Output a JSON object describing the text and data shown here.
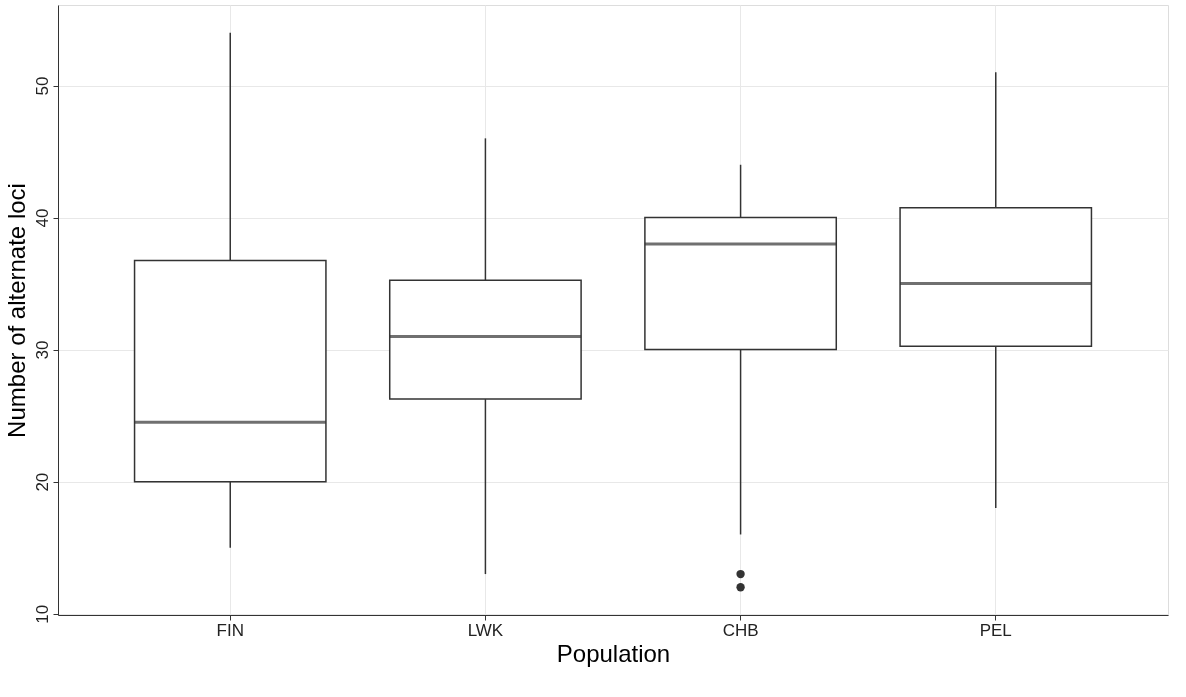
{
  "chart_data": {
    "type": "box",
    "xlabel": "Population",
    "ylabel": "Number of alternate loci",
    "categories": [
      "FIN",
      "LWK",
      "CHB",
      "PEL"
    ],
    "boxes": [
      {
        "low": 15,
        "q1": 20,
        "median": 24.5,
        "q3": 36.75,
        "high": 54
      },
      {
        "low": 13,
        "q1": 26.25,
        "median": 31,
        "q3": 35.25,
        "high": 46
      },
      {
        "low": 16,
        "q1": 30,
        "median": 38,
        "q3": 40,
        "high": 44,
        "outliers": [
          12,
          13
        ]
      },
      {
        "low": 18,
        "q1": 30.25,
        "median": 35,
        "q3": 40.75,
        "high": 51
      }
    ],
    "ylim": [
      9.9,
      56.1
    ],
    "yticks": [
      10,
      20,
      30,
      40,
      50
    ],
    "grid": true
  }
}
